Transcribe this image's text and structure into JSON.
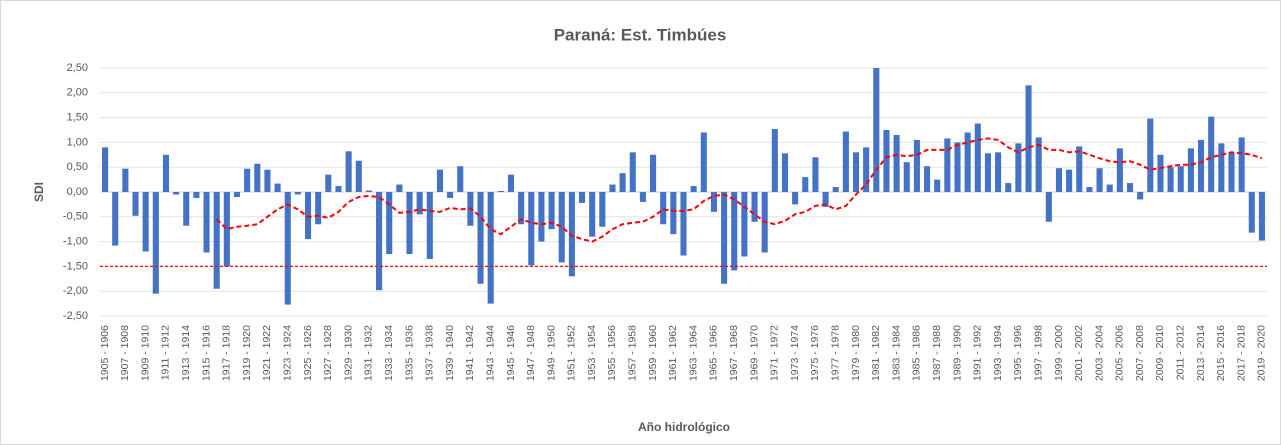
{
  "chart_data": {
    "type": "bar",
    "title": "Paraná: Est. Timbúes",
    "ylabel": "SDI",
    "xlabel": "Año hidrológico",
    "categories": [
      "1905 - 1906",
      null,
      "1907 - 1908",
      null,
      "1909 - 1910",
      null,
      "1911 - 1912",
      null,
      "1913 - 1914",
      null,
      "1915 - 1916",
      null,
      "1917 - 1918",
      null,
      "1919 - 1920",
      null,
      "1921 - 1922",
      null,
      "1923 - 1924",
      null,
      "1925 - 1926",
      null,
      "1927 - 1928",
      null,
      "1929 - 1930",
      null,
      "1931 - 1932",
      null,
      "1933 - 1934",
      null,
      "1935 - 1936",
      null,
      "1937 - 1938",
      null,
      "1939 - 1940",
      null,
      "1941 - 1942",
      null,
      "1943 - 1944",
      null,
      "1945 - 1946",
      null,
      "1947 - 1948",
      null,
      "1949 - 1950",
      null,
      "1951 - 1952",
      null,
      "1953 - 1954",
      null,
      "1955 - 1956",
      null,
      "1957 - 1958",
      null,
      "1959 - 1960",
      null,
      "1961 - 1962",
      null,
      "1963 - 1964",
      null,
      "1965 - 1966",
      null,
      "1967 - 1968",
      null,
      "1969 - 1970",
      null,
      "1971 - 1972",
      null,
      "1973 - 1974",
      null,
      "1975 - 1976",
      null,
      "1977 - 1978",
      null,
      "1979 - 1980",
      null,
      "1981 - 1982",
      null,
      "1983 - 1984",
      null,
      "1985 - 1986",
      null,
      "1987 - 1988",
      null,
      "1989 - 1990",
      null,
      "1991 - 1992",
      null,
      "1993 - 1994",
      null,
      "1995 - 1996",
      null,
      "1997 - 1998",
      null,
      "1999 - 2000",
      null,
      "2001 - 2002",
      null,
      "2003 - 2004",
      null,
      "2005 - 2006",
      null,
      "2007 - 2008",
      null,
      "2009 - 2010",
      null,
      "2011 - 2012",
      null,
      "2013 - 2014",
      null,
      "2015 - 2016",
      null,
      "2017 - 2018",
      null,
      "2019 - 2020"
    ],
    "series": [
      {
        "type": "bar",
        "color": "#4472c4",
        "values": [
          0.9,
          -1.08,
          0.47,
          -0.48,
          -1.2,
          -2.05,
          0.75,
          -0.05,
          -0.68,
          -0.12,
          -1.22,
          -1.95,
          -1.5,
          -0.1,
          0.47,
          0.57,
          0.45,
          0.17,
          -2.27,
          -0.05,
          -0.95,
          -0.65,
          0.35,
          0.12,
          0.82,
          0.63,
          0.03,
          -1.98,
          -1.25,
          0.15,
          -1.25,
          -0.45,
          -1.35,
          0.45,
          -0.12,
          0.52,
          -0.68,
          -1.85,
          -2.25,
          0.02,
          0.35,
          -0.65,
          -1.48,
          -1.0,
          -0.75,
          -1.42,
          -1.7,
          -0.22,
          -0.9,
          -0.7,
          0.15,
          0.38,
          0.8,
          -0.2,
          0.75,
          -0.65,
          -0.85,
          -1.28,
          0.12,
          1.2,
          -0.4,
          -1.85,
          -1.58,
          -1.3,
          -0.6,
          -1.22,
          1.27,
          0.78,
          -0.25,
          0.3,
          0.7,
          -0.3,
          0.1,
          1.22,
          0.8,
          0.9,
          2.5,
          1.25,
          1.15,
          0.6,
          1.05,
          0.52,
          0.25,
          1.08,
          1.0,
          1.2,
          1.38,
          0.78,
          0.8,
          0.18,
          0.98,
          2.15,
          1.1,
          -0.6,
          0.48,
          0.45,
          0.92,
          0.1,
          0.48,
          0.15,
          0.88,
          0.18,
          -0.15,
          1.48,
          0.75,
          0.5,
          0.52,
          0.88,
          1.05,
          1.52,
          0.98,
          0.8,
          1.1,
          -0.82,
          -0.98
        ]
      },
      {
        "type": "line",
        "color": "#ff0000",
        "dashed": true,
        "values": [
          null,
          null,
          null,
          null,
          null,
          null,
          null,
          null,
          null,
          null,
          null,
          -0.55,
          -0.75,
          -0.7,
          -0.68,
          -0.65,
          -0.5,
          -0.35,
          -0.25,
          -0.35,
          -0.5,
          -0.48,
          -0.52,
          -0.4,
          -0.2,
          -0.1,
          -0.08,
          -0.1,
          -0.25,
          -0.42,
          -0.4,
          -0.35,
          -0.38,
          -0.4,
          -0.32,
          -0.35,
          -0.33,
          -0.5,
          -0.75,
          -0.85,
          -0.7,
          -0.55,
          -0.62,
          -0.65,
          -0.62,
          -0.7,
          -0.88,
          -0.95,
          -1.0,
          -0.9,
          -0.75,
          -0.65,
          -0.62,
          -0.6,
          -0.5,
          -0.35,
          -0.38,
          -0.38,
          -0.35,
          -0.18,
          -0.08,
          -0.05,
          -0.15,
          -0.3,
          -0.45,
          -0.6,
          -0.65,
          -0.58,
          -0.45,
          -0.4,
          -0.28,
          -0.25,
          -0.35,
          -0.28,
          -0.05,
          0.15,
          0.45,
          0.7,
          0.75,
          0.72,
          0.75,
          0.85,
          0.85,
          0.85,
          0.95,
          1.0,
          1.05,
          1.08,
          1.05,
          0.9,
          0.8,
          0.9,
          0.95,
          0.85,
          0.85,
          0.8,
          0.82,
          0.75,
          0.68,
          0.62,
          0.6,
          0.62,
          0.55,
          0.45,
          0.48,
          0.52,
          0.55,
          0.55,
          0.6,
          0.7,
          0.75,
          0.8,
          0.78,
          0.75,
          0.68
        ]
      }
    ],
    "reference_lines": [
      {
        "value": -1.5,
        "color": "#ff0000",
        "dashed": true
      }
    ],
    "ylim": [
      -2.5,
      2.5
    ],
    "yticks": [
      {
        "value": 2.5,
        "label": "2,50"
      },
      {
        "value": 2.0,
        "label": "2,00"
      },
      {
        "value": 1.5,
        "label": "1,50"
      },
      {
        "value": 1.0,
        "label": "1,00"
      },
      {
        "value": 0.5,
        "label": "0,50"
      },
      {
        "value": 0.0,
        "label": "0,00"
      },
      {
        "value": -0.5,
        "label": "-0,50"
      },
      {
        "value": -1.0,
        "label": "-1,00"
      },
      {
        "value": -1.5,
        "label": "-1,50"
      },
      {
        "value": -2.0,
        "label": "-2,00"
      },
      {
        "value": -2.5,
        "label": "-2,50"
      }
    ],
    "grid": true
  }
}
